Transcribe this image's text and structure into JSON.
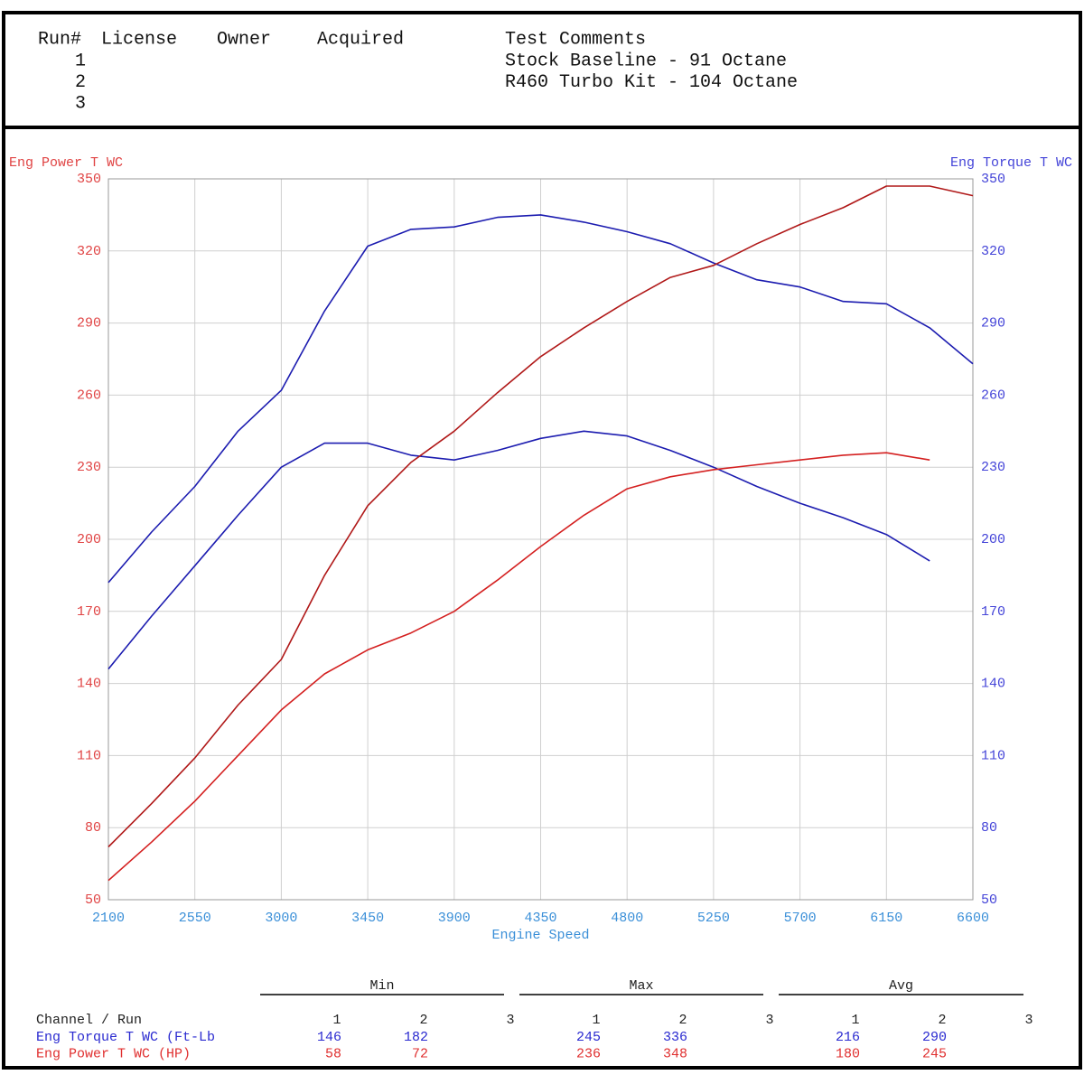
{
  "header": {
    "columns": [
      "Run#",
      "License",
      "Owner",
      "Acquired",
      "Test Comments"
    ],
    "runs": [
      {
        "run": "1",
        "comment": "Stock Baseline - 91 Octane"
      },
      {
        "run": "2",
        "comment": "R460 Turbo Kit - 104 Octane"
      },
      {
        "run": "3"
      }
    ]
  },
  "chart_data": {
    "type": "line",
    "y_label": "Eng Power T WC",
    "y2_label": "Eng Torque T WC",
    "x_label": "Engine Speed",
    "x": [
      2100,
      2325,
      2550,
      2775,
      3000,
      3225,
      3450,
      3675,
      3900,
      4125,
      4350,
      4575,
      4800,
      5025,
      5250,
      5475,
      5700,
      5925,
      6150,
      6375,
      6600
    ],
    "xlim": [
      2100,
      6600
    ],
    "xticks": [
      2100,
      2550,
      3000,
      3450,
      3900,
      4350,
      4800,
      5250,
      5700,
      6150,
      6600
    ],
    "ylim": [
      50,
      350
    ],
    "yticks": [
      50,
      80,
      110,
      140,
      170,
      200,
      230,
      260,
      290,
      320,
      350
    ],
    "y2lim": [
      50,
      350
    ],
    "y2ticks": [
      50,
      80,
      110,
      140,
      170,
      200,
      230,
      260,
      290,
      320,
      350
    ],
    "grid": true,
    "series": [
      {
        "color": "#1c1cb0",
        "axis": "y2",
        "values": [
          146,
          168,
          189,
          210,
          230,
          240,
          240,
          235,
          233,
          237,
          242,
          245,
          243,
          237,
          230,
          222,
          215,
          209,
          202,
          191,
          null
        ]
      },
      {
        "color": "#1c1cb0",
        "axis": "y2",
        "values": [
          182,
          203,
          222,
          245,
          262,
          295,
          322,
          329,
          330,
          334,
          335,
          332,
          328,
          323,
          315,
          308,
          305,
          299,
          298,
          288,
          273
        ]
      },
      {
        "color": "#d42020",
        "values": [
          58,
          74,
          91,
          110,
          129,
          144,
          154,
          161,
          170,
          183,
          197,
          210,
          221,
          226,
          229,
          231,
          233,
          235,
          236,
          233,
          null
        ]
      },
      {
        "color": "#b01818",
        "values": [
          72,
          90,
          109,
          131,
          150,
          185,
          214,
          232,
          245,
          261,
          276,
          288,
          299,
          309,
          314,
          323,
          331,
          338,
          347,
          347,
          343
        ]
      }
    ]
  },
  "summary": {
    "groups": [
      "Min",
      "Max",
      "Avg"
    ],
    "row_header": "Channel / Run",
    "runs": [
      "1",
      "2",
      "3"
    ],
    "rows": [
      {
        "label": "Eng Torque T WC (Ft-Lb",
        "color": "#2a2ad0",
        "values": [
          146,
          182,
          null,
          245,
          336,
          null,
          216,
          290,
          null
        ]
      },
      {
        "label": "Eng Power T WC (HP)",
        "color": "#e03030",
        "values": [
          58,
          72,
          null,
          236,
          348,
          null,
          180,
          245,
          null
        ]
      }
    ]
  }
}
